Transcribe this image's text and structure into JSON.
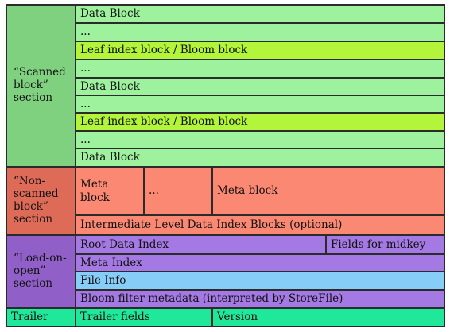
{
  "colors": {
    "scanned_label": "#7fd07f",
    "scanned_row": "#9ef29e",
    "leaf_row": "#b2f53a",
    "nonscanned_label": "#de6b57",
    "nonscanned_row": "#fa8872",
    "loadonopen_label": "#9060c8",
    "loadonopen_row": "#a479e3",
    "fileinfo_row": "#86cdf8",
    "trailer": "#1fe89a",
    "border": "#2b2b2b"
  },
  "sections": {
    "scanned": {
      "label": "“Scanned block” section",
      "rows": [
        "Data Block",
        "...",
        "Leaf index block / Bloom block",
        "...",
        "Data Block",
        "...",
        "Leaf index block / Bloom block",
        "...",
        "Data Block"
      ]
    },
    "non_scanned": {
      "label": "“Non-scanned block” section",
      "meta_row": [
        "Meta block",
        "...",
        "Meta block"
      ],
      "intermediate": "Intermediate Level Data Index Blocks (optional)"
    },
    "load_on_open": {
      "label": "“Load-on-open” section",
      "root_index": "Root Data Index",
      "midkey": "Fields for midkey",
      "meta_index": "Meta Index",
      "file_info": "File Info",
      "bloom_meta": "Bloom filter metadata (interpreted by StoreFile)"
    },
    "trailer": {
      "label": "Trailer",
      "fields": "Trailer fields",
      "version": "Version"
    }
  }
}
